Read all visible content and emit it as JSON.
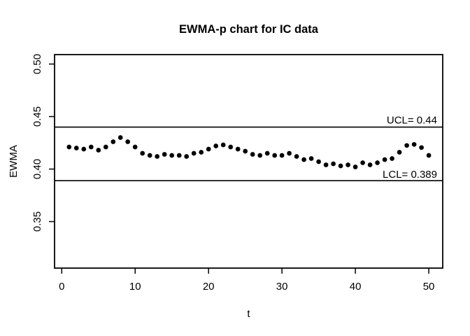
{
  "chart_data": {
    "type": "scatter",
    "title": "EWMA-p chart for IC data",
    "xlabel": "t",
    "ylabel": "EWMA",
    "x_ticks": [
      0,
      10,
      20,
      30,
      40,
      50
    ],
    "x_tick_labels": [
      "0",
      "10",
      "20",
      "30",
      "40",
      "50"
    ],
    "y_ticks": [
      0.35,
      0.4,
      0.45,
      0.5
    ],
    "y_tick_labels": [
      "0.35",
      "0.40",
      "0.45",
      "0.50"
    ],
    "xlim": [
      -0.98,
      51.9
    ],
    "ylim": [
      0.3057,
      0.509
    ],
    "grid": false,
    "legend": "none",
    "marker": "filled-circle",
    "colors": {
      "background": "#ffffff",
      "foreground": "#000000"
    },
    "control_limits": {
      "ucl": {
        "value": 0.44,
        "label": "UCL= 0.44"
      },
      "lcl": {
        "value": 0.389,
        "label": "LCL= 0.389"
      }
    },
    "x": [
      1,
      2,
      3,
      4,
      5,
      6,
      7,
      8,
      9,
      10,
      11,
      12,
      13,
      14,
      15,
      16,
      17,
      18,
      19,
      20,
      21,
      22,
      23,
      24,
      25,
      26,
      27,
      28,
      29,
      30,
      31,
      32,
      33,
      34,
      35,
      36,
      37,
      38,
      39,
      40,
      41,
      42,
      43,
      44,
      45,
      46,
      47,
      48,
      49,
      50
    ],
    "y": [
      0.421,
      0.42,
      0.419,
      0.421,
      0.418,
      0.421,
      0.426,
      0.43,
      0.426,
      0.421,
      0.415,
      0.413,
      0.412,
      0.414,
      0.413,
      0.413,
      0.412,
      0.415,
      0.416,
      0.419,
      0.422,
      0.423,
      0.421,
      0.419,
      0.417,
      0.414,
      0.413,
      0.415,
      0.413,
      0.413,
      0.415,
      0.412,
      0.409,
      0.41,
      0.407,
      0.404,
      0.405,
      0.403,
      0.404,
      0.402,
      0.406,
      0.404,
      0.406,
      0.409,
      0.41,
      0.416,
      0.4225,
      0.4235,
      0.4205,
      0.413
    ]
  }
}
